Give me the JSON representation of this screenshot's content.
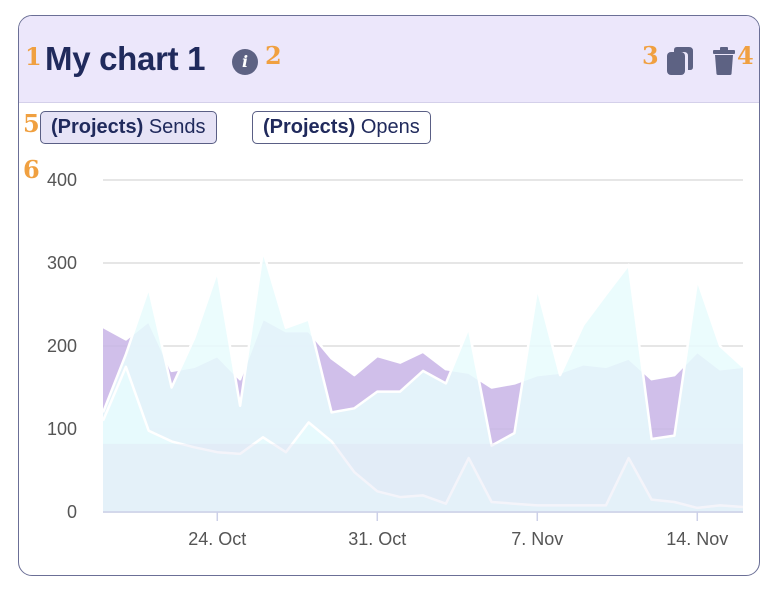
{
  "card": {
    "title": "My chart 1",
    "info_icon": "info-icon",
    "actions": [
      {
        "name": "copy-icon",
        "label": "Duplicate"
      },
      {
        "name": "trash-icon",
        "label": "Delete"
      }
    ]
  },
  "markers": [
    "1",
    "2",
    "3",
    "4",
    "5",
    "6"
  ],
  "legend": [
    {
      "prefix": "(Projects)",
      "label": "Sends",
      "active": true
    },
    {
      "prefix": "(Projects)",
      "label": "Opens",
      "active": false
    }
  ],
  "colors": {
    "header_bg": "#ece7fb",
    "title": "#202a5c",
    "sends_fill": "#c8b4e6",
    "sends_stroke": "#ffffff",
    "opens_fill": "#e7fbfd",
    "overlay_fill": "#e0e0f0",
    "grid": "#dddddd",
    "marker": "#f0a040"
  },
  "chart_data": {
    "type": "area",
    "title": "",
    "xlabel": "",
    "ylabel": "",
    "ylim": [
      0,
      400
    ],
    "y_ticks": [
      0,
      100,
      200,
      300,
      400
    ],
    "x_ticks": [
      "24. Oct",
      "31. Oct",
      "7. Nov",
      "14. Nov"
    ],
    "grid": true,
    "x": [
      "2023-10-19",
      "2023-10-20",
      "2023-10-21",
      "2023-10-22",
      "2023-10-23",
      "2023-10-24",
      "2023-10-25",
      "2023-10-26",
      "2023-10-27",
      "2023-10-28",
      "2023-10-29",
      "2023-10-30",
      "2023-10-31",
      "2023-11-01",
      "2023-11-02",
      "2023-11-03",
      "2023-11-04",
      "2023-11-05",
      "2023-11-06",
      "2023-11-07",
      "2023-11-08",
      "2023-11-09",
      "2023-11-10",
      "2023-11-11",
      "2023-11-12",
      "2023-11-13",
      "2023-11-14",
      "2023-11-15",
      "2023-11-16"
    ],
    "series": [
      {
        "values": [
          223,
          208,
          230,
          170,
          175,
          188,
          160,
          233,
          218,
          218,
          185,
          165,
          188,
          180,
          193,
          172,
          168,
          150,
          155,
          165,
          168,
          178,
          175,
          185,
          160,
          165,
          193,
          172,
          175
        ]
      },
      {
        "values": [
          120,
          190,
          270,
          150,
          210,
          290,
          128,
          315,
          222,
          232,
          120,
          125,
          145,
          145,
          170,
          155,
          222,
          80,
          95,
          270,
          165,
          225,
          262,
          298,
          88,
          92,
          280,
          200,
          175
        ]
      },
      {
        "values": [
          110,
          175,
          98,
          85,
          78,
          72,
          70,
          90,
          72,
          108,
          85,
          48,
          25,
          18,
          20,
          10,
          65,
          12,
          10,
          8,
          8,
          8,
          8,
          65,
          15,
          12,
          5,
          8,
          6
        ]
      }
    ],
    "overlay_band": 82
  }
}
